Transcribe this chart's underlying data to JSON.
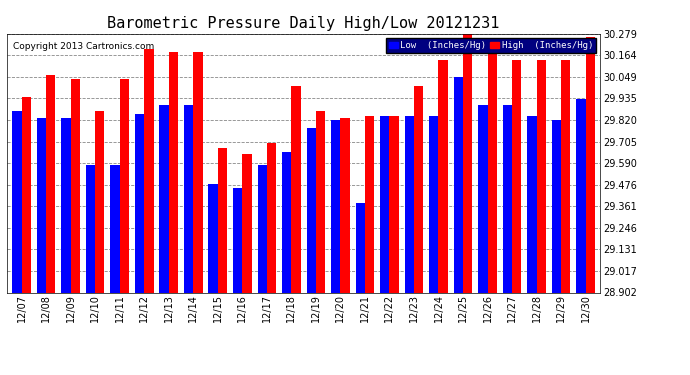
{
  "title": "Barometric Pressure Daily High/Low 20121231",
  "copyright": "Copyright 2013 Cartronics.com",
  "dates": [
    "12/07",
    "12/08",
    "12/09",
    "12/10",
    "12/11",
    "12/12",
    "12/13",
    "12/14",
    "12/15",
    "12/16",
    "12/17",
    "12/18",
    "12/19",
    "12/20",
    "12/21",
    "12/22",
    "12/23",
    "12/24",
    "12/25",
    "12/26",
    "12/27",
    "12/28",
    "12/29",
    "12/30"
  ],
  "low_values": [
    29.87,
    29.83,
    29.83,
    29.58,
    29.58,
    29.85,
    29.9,
    29.9,
    29.48,
    29.46,
    29.58,
    29.65,
    29.78,
    29.82,
    29.38,
    29.84,
    29.84,
    29.84,
    30.05,
    29.9,
    29.9,
    29.84,
    29.82,
    29.93
  ],
  "high_values": [
    29.94,
    30.06,
    30.04,
    29.87,
    30.04,
    30.2,
    30.18,
    30.18,
    29.67,
    29.64,
    29.7,
    30.0,
    29.87,
    29.83,
    29.84,
    29.84,
    30.0,
    30.14,
    30.28,
    30.19,
    30.14,
    30.14,
    30.14,
    30.26
  ],
  "ylim_min": 28.902,
  "ylim_max": 30.279,
  "yticks": [
    28.902,
    29.017,
    29.131,
    29.246,
    29.361,
    29.476,
    29.59,
    29.705,
    29.82,
    29.935,
    30.049,
    30.164,
    30.279
  ],
  "low_color": "#0000ff",
  "high_color": "#ff0000",
  "bg_color": "#ffffff",
  "grid_color": "#888888",
  "title_fontsize": 11,
  "bar_width": 0.38
}
